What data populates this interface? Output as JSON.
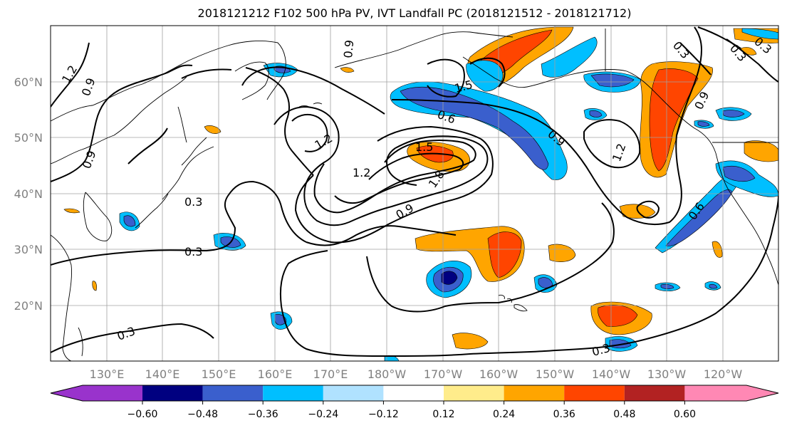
{
  "title": "2018121212 F102 500 hPa PV, IVT Landfall PC (2018121512 - 2018121712)",
  "map": {
    "lon_labels": [
      "130°E",
      "140°E",
      "150°E",
      "160°E",
      "170°E",
      "180°W",
      "170°W",
      "160°W",
      "150°W",
      "140°W",
      "130°W",
      "120°W"
    ],
    "lat_labels": [
      "60°N",
      "50°N",
      "40°N",
      "30°N",
      "20°N"
    ],
    "contour_labels": [
      "1.2",
      "0.9",
      "0.9",
      "0.3",
      "0.3",
      "0.3",
      "0.9",
      "1.2",
      "1.5",
      "1.2",
      "1.8",
      "0.9",
      "1.5",
      "0.6",
      "0.9",
      "1.2",
      "0.3",
      "0.3",
      "0.9",
      "0.3",
      "0.6",
      "0.3"
    ]
  },
  "colorbar": {
    "ticks": [
      "−0.60",
      "−0.48",
      "−0.36",
      "−0.24",
      "−0.12",
      "0.12",
      "0.24",
      "0.36",
      "0.48",
      "0.60"
    ],
    "colors": [
      "#9933cc",
      "#000080",
      "#3a5fcd",
      "#00bfff",
      "#b0e2ff",
      "#ffffff",
      "#ffec8b",
      "#ffa500",
      "#ff4500",
      "#b22222",
      "#ff88b4"
    ]
  }
}
